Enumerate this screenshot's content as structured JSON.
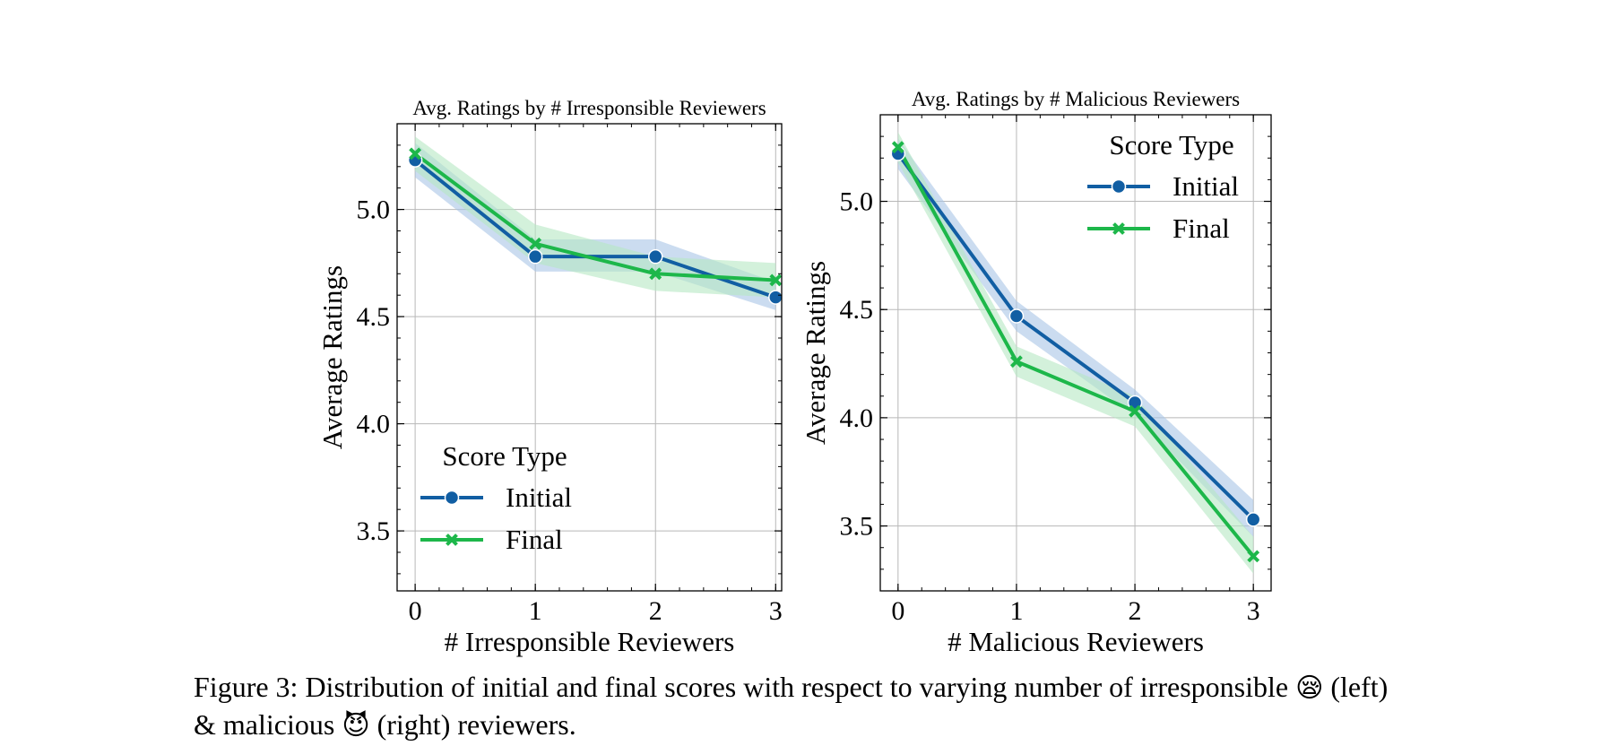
{
  "chart_data": [
    {
      "type": "line",
      "title": "Avg. Ratings by # Irresponsible Reviewers",
      "xlabel": "# Irresponsible Reviewers",
      "ylabel": "Average Ratings",
      "x": [
        0,
        1,
        2,
        3
      ],
      "xlim": [
        -0.15,
        3.05
      ],
      "ylim": [
        3.22,
        5.4
      ],
      "yticks": [
        "3.5",
        "4.0",
        "4.5",
        "5.0"
      ],
      "xticks": [
        "0",
        "1",
        "2",
        "3"
      ],
      "grid": true,
      "legend": {
        "title": "Score Type",
        "placement": "lower-left"
      },
      "series": [
        {
          "name": "Initial",
          "marker": "circle",
          "color": "#115ea3",
          "band": "#a8c4e6",
          "values": [
            5.23,
            4.78,
            4.78,
            4.59
          ],
          "lower": [
            5.15,
            4.71,
            4.71,
            4.53
          ],
          "upper": [
            5.31,
            4.86,
            4.86,
            4.66
          ]
        },
        {
          "name": "Final",
          "marker": "x",
          "color": "#1db74a",
          "band": "#b5e8c3",
          "values": [
            5.26,
            4.84,
            4.7,
            4.67
          ],
          "lower": [
            5.18,
            4.75,
            4.62,
            4.59
          ],
          "upper": [
            5.34,
            4.93,
            4.78,
            4.75
          ]
        }
      ]
    },
    {
      "type": "line",
      "title": "Avg. Ratings by # Malicious Reviewers",
      "xlabel": "# Malicious Reviewers",
      "ylabel": "Average Ratings",
      "x": [
        0,
        1,
        2,
        3
      ],
      "xlim": [
        -0.15,
        3.15
      ],
      "ylim": [
        3.2,
        5.4
      ],
      "yticks": [
        "3.5",
        "4.0",
        "4.5",
        "5.0"
      ],
      "xticks": [
        "0",
        "1",
        "2",
        "3"
      ],
      "grid": true,
      "legend": {
        "title": "Score Type",
        "placement": "upper-right"
      },
      "series": [
        {
          "name": "Initial",
          "marker": "circle",
          "color": "#115ea3",
          "band": "#a8c4e6",
          "values": [
            5.22,
            4.47,
            4.07,
            3.53
          ],
          "lower": [
            5.15,
            4.4,
            4.01,
            3.45
          ],
          "upper": [
            5.29,
            4.54,
            4.13,
            3.62
          ]
        },
        {
          "name": "Final",
          "marker": "x",
          "color": "#1db74a",
          "band": "#b5e8c3",
          "values": [
            5.25,
            4.26,
            4.03,
            3.36
          ],
          "lower": [
            5.18,
            4.19,
            3.96,
            3.28
          ],
          "upper": [
            5.32,
            4.33,
            4.1,
            3.45
          ]
        }
      ]
    }
  ],
  "caption": {
    "line1": "Figure 3: Distribution of initial and final scores with respect to varying number of irresponsible",
    "emoji1": "😪",
    "after1": "(left)",
    "line2": "& malicious",
    "emoji2": "😈",
    "after2": "(right) reviewers."
  }
}
